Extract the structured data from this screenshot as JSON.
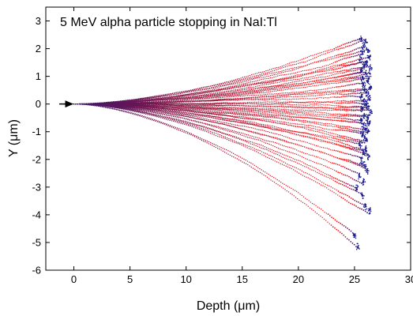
{
  "chart_data": {
    "type": "scatter",
    "title": "5 MeV alpha particle stopping in NaI:Tl",
    "xlabel": "Depth (μm)",
    "ylabel": "Y (μm)",
    "xlim": [
      -2.5,
      30
    ],
    "ylim": [
      -6,
      3.5
    ],
    "x_ticks": [
      "0",
      "5",
      "10",
      "15",
      "20",
      "25",
      "30"
    ],
    "x_tick_values": [
      0,
      5,
      10,
      15,
      20,
      25,
      30
    ],
    "y_ticks": [
      "-6",
      "-5",
      "-4",
      "-3",
      "-2",
      "-1",
      "0",
      "1",
      "2",
      "3"
    ],
    "y_tick_values": [
      -6,
      -5,
      -4,
      -3,
      -2,
      -1,
      0,
      1,
      2,
      3
    ],
    "grid": false,
    "entry_arrow": {
      "from": [
        -1.3,
        0
      ],
      "to": [
        0,
        0
      ]
    },
    "colors": {
      "start": "#3a1a6e",
      "mid": "#b0102e",
      "end_red": "#ff1a1a",
      "endpoint": "#1a1a8c"
    },
    "series": [
      {
        "trajectory_end_y": [
          2.35,
          2.25,
          2.1,
          1.95,
          1.85,
          1.7,
          1.6,
          1.5,
          1.4,
          1.3,
          1.2,
          1.1,
          1.0,
          0.9,
          0.8,
          0.7,
          0.6,
          0.5,
          0.4,
          0.3,
          0.2,
          0.1,
          0.0,
          -0.1,
          -0.2,
          -0.3,
          -0.4,
          -0.5,
          -0.6,
          -0.7,
          -0.8,
          -0.9,
          -1.0,
          -1.1,
          -1.2,
          -1.3,
          -1.45,
          -1.6,
          -1.75,
          -1.9,
          -2.05,
          -2.2,
          -2.4,
          -2.6,
          -2.8,
          -3.05,
          -3.3,
          -3.7,
          -3.85,
          -4.75,
          -5.15
        ]
      }
    ],
    "trajectory_end_x": [
      25.6,
      26.0,
      25.8,
      26.2,
      25.7,
      26.3,
      25.5,
      26.1,
      25.9,
      26.4,
      25.6,
      26.0,
      26.3,
      25.7,
      26.2,
      25.8,
      26.4,
      25.9,
      26.1,
      25.6,
      26.3,
      25.8,
      26.0,
      26.2,
      25.7,
      26.4,
      25.9,
      26.1,
      25.6,
      26.3,
      25.8,
      26.0,
      26.2,
      25.7,
      25.9,
      26.1,
      25.5,
      26.0,
      25.8,
      26.2,
      25.6,
      25.9,
      26.1,
      25.4,
      25.8,
      25.2,
      25.7,
      26.0,
      26.3,
      25.0,
      25.3
    ]
  }
}
